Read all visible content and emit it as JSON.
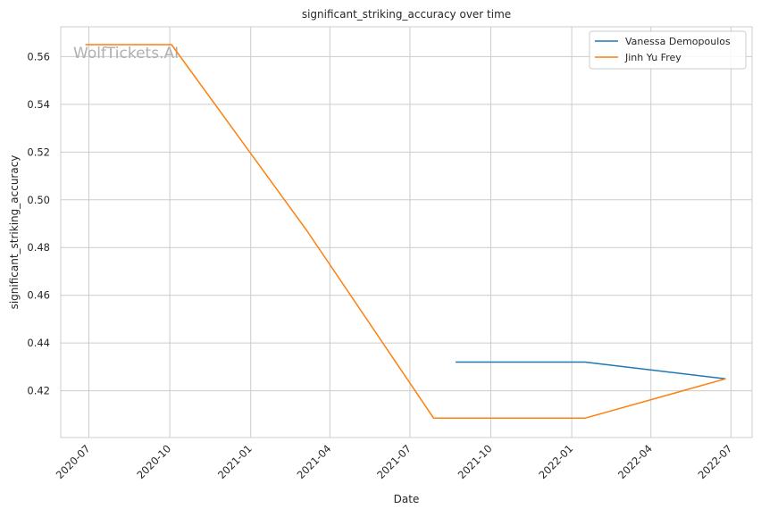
{
  "chart_data": {
    "type": "line",
    "title": "significant_striking_accuracy over time",
    "xlabel": "Date",
    "ylabel": "significant_striking_accuracy",
    "watermark": "WolfTickets.AI",
    "x_ticks": [
      "2020-07",
      "2020-10",
      "2021-01",
      "2021-04",
      "2021-07",
      "2021-10",
      "2022-01",
      "2022-04",
      "2022-07"
    ],
    "y_ticks": [
      "0.42",
      "0.44",
      "0.46",
      "0.48",
      "0.50",
      "0.52",
      "0.54",
      "0.56"
    ],
    "xlim": [
      "2020-05-30",
      "2022-07-25"
    ],
    "ylim": [
      0.4004,
      0.5725
    ],
    "grid": true,
    "legend_position": "top-right",
    "series": [
      {
        "name": "Vanessa Demopoulos",
        "color": "#1f77b4",
        "points": [
          {
            "x": "2021-08-22",
            "y": 0.432
          },
          {
            "x": "2022-01-16",
            "y": 0.432
          },
          {
            "x": "2022-06-25",
            "y": 0.425
          }
        ]
      },
      {
        "name": "Jinh Yu Frey",
        "color": "#ff7f0e",
        "points": [
          {
            "x": "2020-06-27",
            "y": 0.565
          },
          {
            "x": "2020-10-03",
            "y": 0.565
          },
          {
            "x": "2021-03-06",
            "y": 0.487
          },
          {
            "x": "2021-07-28",
            "y": 0.4085
          },
          {
            "x": "2022-01-16",
            "y": 0.4085
          },
          {
            "x": "2022-06-25",
            "y": 0.425
          }
        ]
      }
    ]
  }
}
